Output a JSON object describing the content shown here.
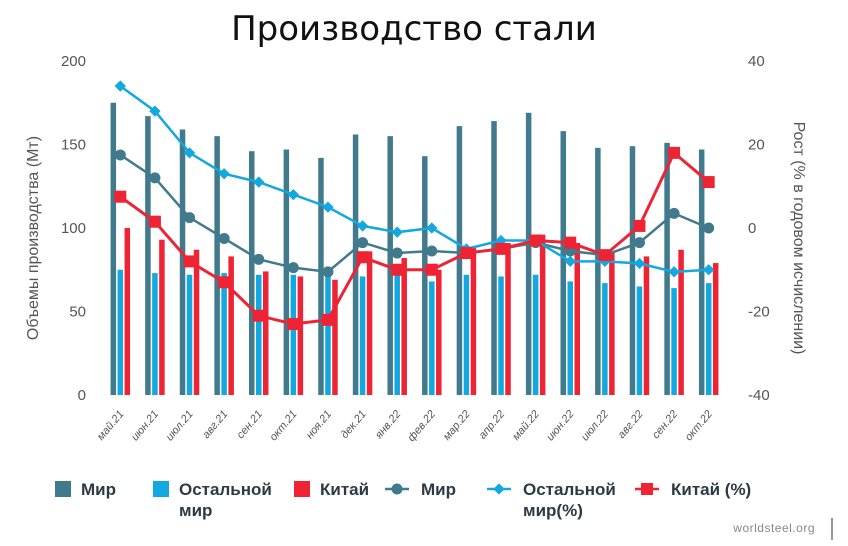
{
  "chart_data": {
    "type": "bar",
    "title": "Производство стали",
    "categories": [
      "май.21",
      "июн.21",
      "июл.21",
      "авг.21",
      "сен.21",
      "окт.21",
      "ноя.21",
      "дек.21",
      "янв.22",
      "фев.22",
      "мар.22",
      "апр.22",
      "май.22",
      "июн.22",
      "июл.22",
      "авг.22",
      "сен.22",
      "окт.22"
    ],
    "ylabel": "Объемы производства (Мт)",
    "y2label": "Рост (% в годовом исчислении)",
    "ylim": [
      0,
      200
    ],
    "y2lim": [
      -40,
      40
    ],
    "yticks": [
      "0",
      "50",
      "100",
      "150",
      "200"
    ],
    "y2ticks": [
      "-40",
      "-20",
      "0",
      "20",
      "40"
    ],
    "bar_series": [
      {
        "name": "Мир",
        "color": "#417a8c",
        "values": [
          175,
          167,
          159,
          155,
          146,
          147,
          142,
          156,
          155,
          143,
          161,
          164,
          169,
          158,
          148,
          149,
          151,
          147
        ]
      },
      {
        "name": "Остальной мир",
        "color": "#13a8df",
        "values": [
          75,
          73,
          72,
          73,
          72,
          72,
          71,
          71,
          72,
          68,
          72,
          71,
          72,
          68,
          67,
          65,
          64,
          67
        ]
      },
      {
        "name": "Китай",
        "color": "#ee2434",
        "values": [
          100,
          93,
          87,
          83,
          74,
          71,
          69,
          86,
          82,
          75,
          88,
          91,
          96,
          91,
          86,
          83,
          87,
          79
        ]
      }
    ],
    "line_series": [
      {
        "name": "Мир",
        "color": "#417a8c",
        "axis": "right",
        "values": [
          17.5,
          12,
          2.5,
          -2.5,
          -7.5,
          -9.5,
          -10.5,
          -3.5,
          -6,
          -5.5,
          -6,
          -5,
          -3.5,
          -5.5,
          -6.5,
          -3.5,
          3.5,
          0
        ]
      },
      {
        "name": "Остальной мир(%)",
        "color": "#13a8df",
        "axis": "right",
        "values": [
          34,
          28,
          18,
          13,
          11,
          8,
          5,
          0.5,
          -1,
          0,
          -5,
          -3,
          -3,
          -8,
          -8,
          -8.5,
          -10.5,
          -10
        ]
      },
      {
        "name": "Китай (%)",
        "color": "#ee2434",
        "axis": "right",
        "values": [
          7.5,
          1.5,
          -8,
          -13,
          -21,
          -23,
          -22,
          -7,
          -10,
          -10,
          -6,
          -5,
          -3,
          -3.5,
          -6.5,
          0.5,
          18,
          11
        ]
      }
    ],
    "legend": [
      {
        "label": "Мир",
        "kind": "bar",
        "color": "#417a8c"
      },
      {
        "label": "Остальной мир",
        "kind": "bar",
        "color": "#13a8df"
      },
      {
        "label": "Китай",
        "kind": "bar",
        "color": "#ee2434"
      },
      {
        "label": "Мир",
        "kind": "line-circle",
        "color": "#417a8c"
      },
      {
        "label": "Остальной мир(%)",
        "kind": "line-diamond",
        "color": "#13a8df"
      },
      {
        "label": "Китай (%)",
        "kind": "line-square",
        "color": "#ee2434"
      }
    ],
    "legend_position": "bottom",
    "grid": false,
    "source": "worldsteel.org"
  }
}
